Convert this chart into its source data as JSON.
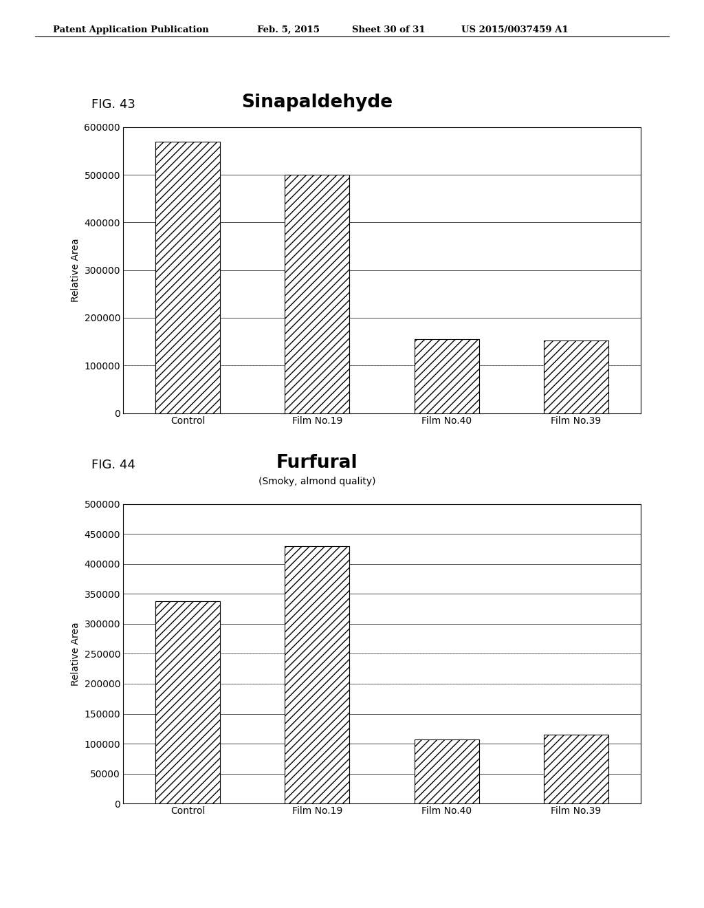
{
  "fig43": {
    "title": "Sinapaldehyde",
    "fig_label": "FIG. 43",
    "categories": [
      "Control",
      "Film No.19",
      "Film No.40",
      "Film No.39"
    ],
    "values": [
      570000,
      500000,
      155000,
      152000
    ],
    "ylabel": "Relative Area",
    "ylim": [
      0,
      600000
    ],
    "yticks": [
      0,
      100000,
      200000,
      300000,
      400000,
      500000,
      600000
    ],
    "dashed_lines": [
      100000
    ]
  },
  "fig44": {
    "title": "Furfural",
    "subtitle": "(Smoky, almond quality)",
    "fig_label": "FIG. 44",
    "categories": [
      "Control",
      "Film No.19",
      "Film No.40",
      "Film No.39"
    ],
    "values": [
      338000,
      430000,
      107000,
      115000
    ],
    "ylabel": "Relative Area",
    "ylim": [
      0,
      500000
    ],
    "yticks": [
      0,
      50000,
      100000,
      150000,
      200000,
      250000,
      300000,
      350000,
      400000,
      450000,
      500000
    ],
    "dashed_lines": [
      200000,
      250000
    ]
  },
  "header_text": "Patent Application Publication",
  "header_date": "Feb. 5, 2015",
  "header_sheet": "Sheet 30 of 31",
  "header_patent": "US 2015/0037459 A1",
  "bg_color": "#ffffff",
  "bar_color": "#ffffff",
  "hatch": "///",
  "bar_edgecolor": "#000000"
}
